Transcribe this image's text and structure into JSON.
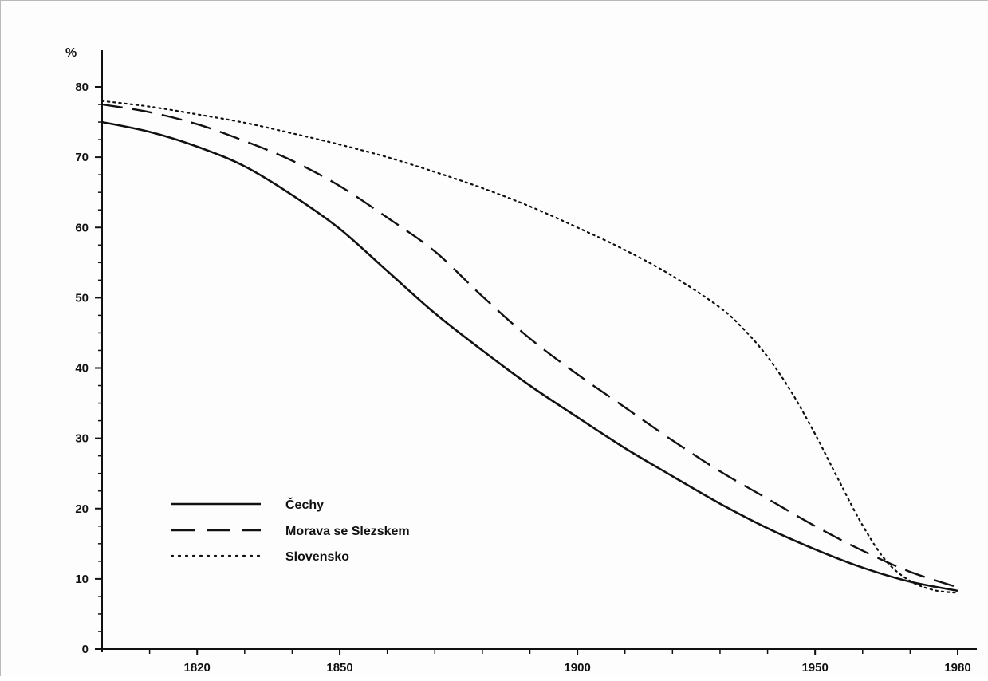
{
  "chart_data": {
    "type": "line",
    "title": "",
    "xlabel": "",
    "ylabel": "%",
    "xlim": [
      1800,
      1980
    ],
    "ylim": [
      0,
      80
    ],
    "grid": false,
    "legend_position": "bottom-left",
    "x_ticks": [
      1820,
      1850,
      1900,
      1950,
      1980
    ],
    "y_ticks": [
      0,
      10,
      20,
      30,
      40,
      50,
      60,
      70,
      80
    ],
    "series": [
      {
        "name": "Čechy",
        "style": "solid",
        "x": [
          1800,
          1810,
          1820,
          1830,
          1840,
          1850,
          1860,
          1870,
          1880,
          1890,
          1900,
          1910,
          1920,
          1930,
          1940,
          1950,
          1960,
          1970,
          1980
        ],
        "values": [
          75,
          73.6,
          71.5,
          68.7,
          64.6,
          59.8,
          53.8,
          47.8,
          42.5,
          37.5,
          33,
          28.6,
          24.6,
          20.7,
          17.2,
          14.2,
          11.6,
          9.6,
          8.3
        ]
      },
      {
        "name": "Morava se Slezskem",
        "style": "dashed",
        "x": [
          1800,
          1810,
          1820,
          1830,
          1840,
          1850,
          1860,
          1870,
          1880,
          1890,
          1900,
          1910,
          1920,
          1930,
          1940,
          1950,
          1960,
          1970,
          1980
        ],
        "values": [
          77.5,
          76.4,
          74.7,
          72.3,
          69.5,
          65.9,
          61.4,
          56.6,
          50.2,
          44.2,
          39.1,
          34.4,
          29.7,
          25.3,
          21.4,
          17.5,
          14,
          11,
          8.8
        ]
      },
      {
        "name": "Slovensko",
        "style": "dotted",
        "x": [
          1800,
          1810,
          1820,
          1830,
          1840,
          1850,
          1860,
          1870,
          1880,
          1890,
          1900,
          1910,
          1920,
          1930,
          1935,
          1940,
          1945,
          1950,
          1955,
          1960,
          1965,
          1970,
          1975,
          1980
        ],
        "values": [
          78,
          77.2,
          76.1,
          74.9,
          73.4,
          71.8,
          70,
          67.9,
          65.6,
          63,
          60,
          56.8,
          53.1,
          48.6,
          45.5,
          41.6,
          36.6,
          30.6,
          24,
          17.6,
          12.5,
          9.7,
          8.4,
          8
        ]
      }
    ]
  }
}
